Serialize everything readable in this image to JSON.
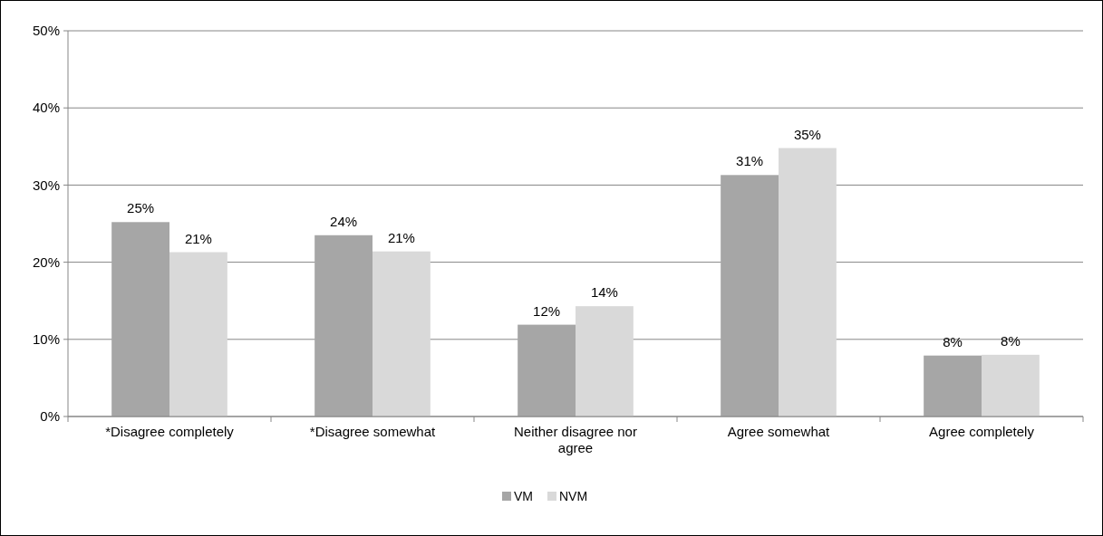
{
  "chart_data": {
    "type": "bar",
    "categories": [
      "*Disagree completely",
      "*Disagree somewhat",
      "Neither disagree nor agree",
      "Agree somewhat",
      "Agree completely"
    ],
    "series": [
      {
        "name": "VM",
        "color": "#a6a6a6",
        "values": [
          25.2,
          23.5,
          11.9,
          31.3,
          7.9
        ],
        "value_labels": [
          "25%",
          "24%",
          "12%",
          "31%",
          "8%"
        ]
      },
      {
        "name": "NVM",
        "color": "#d9d9d9",
        "values": [
          21.3,
          21.4,
          14.3,
          34.8,
          8.0
        ],
        "value_labels": [
          "21%",
          "21%",
          "14%",
          "35%",
          "8%"
        ]
      }
    ],
    "ylim": [
      0,
      50
    ],
    "yticks": [
      {
        "value": 0,
        "label": "0%"
      },
      {
        "value": 10,
        "label": "10%"
      },
      {
        "value": 20,
        "label": "20%"
      },
      {
        "value": 30,
        "label": "30%"
      },
      {
        "value": 40,
        "label": "40%"
      },
      {
        "value": 50,
        "label": "50%"
      }
    ],
    "grid": "y",
    "legend": "bottom"
  }
}
